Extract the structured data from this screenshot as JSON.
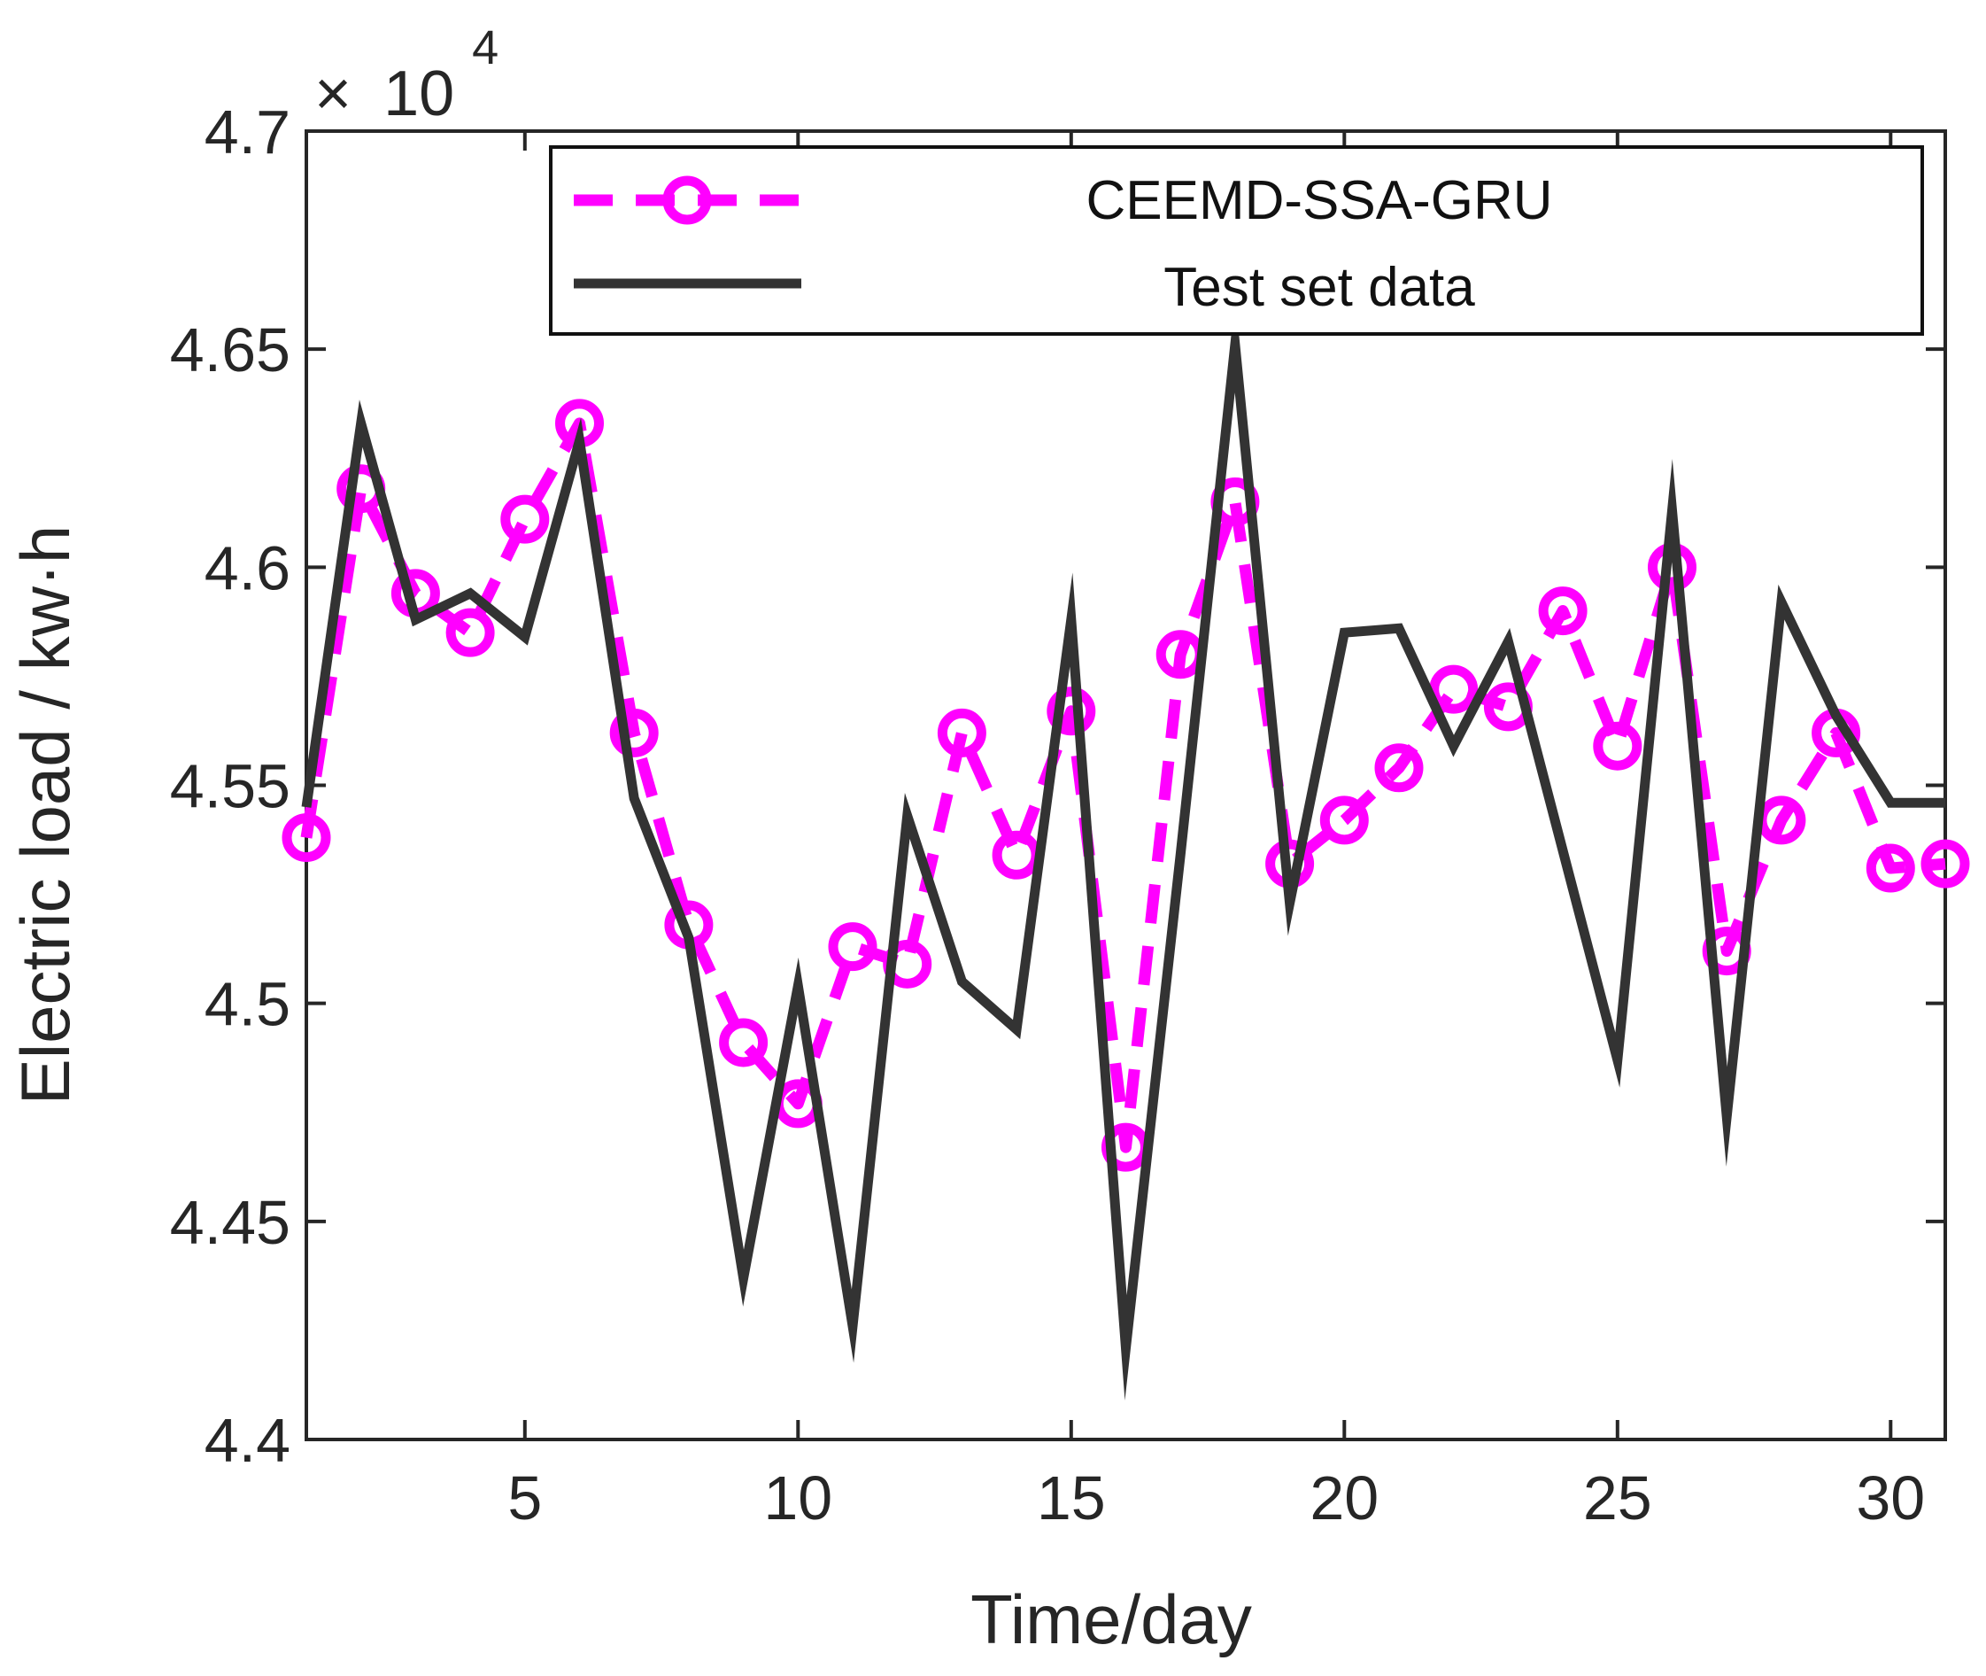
{
  "chart_data": {
    "type": "line",
    "title": "",
    "xlabel": "Time/day",
    "ylabel": "Electric load / kw·h",
    "y_multiplier": {
      "times": "×",
      "base": "10",
      "exponent": "4"
    },
    "xlim": [
      1,
      31
    ],
    "ylim": [
      4.4,
      4.7
    ],
    "xticks": [
      5,
      10,
      15,
      20,
      25,
      30
    ],
    "xtick_labels": [
      "5",
      "10",
      "15",
      "20",
      "25",
      "30"
    ],
    "yticks": [
      4.4,
      4.45,
      4.5,
      4.55,
      4.6,
      4.65,
      4.7
    ],
    "ytick_labels": [
      "4.4",
      "4.45",
      "4.5",
      "4.55",
      "4.6",
      "4.65",
      "4.7"
    ],
    "grid": false,
    "legend_position": "top-right",
    "x": [
      1,
      2,
      3,
      4,
      5,
      6,
      7,
      8,
      9,
      10,
      11,
      12,
      13,
      14,
      15,
      16,
      17,
      18,
      19,
      20,
      21,
      22,
      23,
      24,
      25,
      26,
      27,
      28,
      29,
      30,
      31
    ],
    "series": [
      {
        "name": "CEEMD-SSA-GRU",
        "color": "#ff00ff",
        "style": "dashed-circle",
        "values": [
          4.538,
          4.618,
          4.594,
          4.585,
          4.611,
          4.633,
          4.562,
          4.518,
          4.491,
          4.477,
          4.513,
          4.509,
          4.562,
          4.534,
          4.567,
          4.467,
          4.58,
          4.615,
          4.532,
          4.542,
          4.554,
          4.572,
          4.568,
          4.59,
          4.559,
          4.6,
          4.512,
          4.542,
          4.562,
          4.531,
          4.532
        ]
      },
      {
        "name": "Test set data",
        "color": "#333333",
        "style": "solid",
        "values": [
          4.545,
          4.633,
          4.588,
          4.594,
          4.584,
          4.629,
          4.547,
          4.515,
          4.437,
          4.504,
          4.426,
          4.543,
          4.505,
          4.494,
          4.588,
          4.421,
          4.534,
          4.651,
          4.523,
          4.585,
          4.586,
          4.559,
          4.583,
          4.535,
          4.487,
          4.613,
          4.474,
          4.592,
          4.566,
          4.546,
          4.546
        ]
      }
    ]
  }
}
